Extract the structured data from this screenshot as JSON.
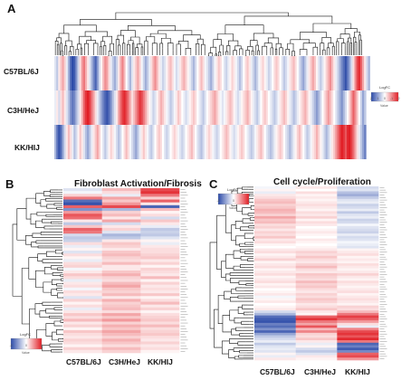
{
  "chart_data": [
    {
      "panel": "A",
      "type": "heatmap",
      "title": "",
      "rows": [
        "C57BL/6J",
        "C3H/HeJ",
        "KK/HIJ"
      ],
      "n_columns": 160,
      "legend": {
        "title": "LogFC",
        "ticks": [
          "2",
          "1",
          "0",
          "-1",
          "-2"
        ],
        "sub": "Value"
      },
      "profile": {
        "C57BL/6J": [
          -0.3,
          -0.6,
          0.2,
          0.5,
          0.8,
          0.4,
          -0.2,
          -0.9,
          -1.6,
          -2,
          -1.8,
          -1.2,
          -0.5,
          0.3,
          0.9,
          1.2,
          0.7,
          0.2,
          -0.3,
          -0.8,
          -1.3,
          -1.7,
          -1.1,
          -0.4,
          0.1,
          0.6,
          1,
          0.8,
          0.3,
          -0.2,
          -0.6,
          -0.9,
          -0.5,
          0.2,
          0.7,
          1.1,
          0.6,
          0,
          -0.4,
          -0.8,
          -0.3,
          0.2,
          0.5,
          0.8,
          0.4,
          -0.1,
          -0.5,
          -0.9,
          -0.6,
          -0.2,
          0.3,
          0.7,
          1,
          0.6,
          0.2,
          -0.2,
          -0.5,
          -0.3,
          0.1,
          0.4,
          0.6,
          0.3,
          -0.1,
          -0.4,
          -0.2,
          0.2,
          0.5,
          0.7,
          0.4,
          0.1,
          -0.2,
          -0.5,
          -0.8,
          -0.4,
          0,
          0.3,
          0.6,
          0.3,
          -0.1,
          -0.3,
          -0.6,
          -0.9,
          -0.5,
          -0.1,
          0.2,
          0.5,
          0.3,
          0,
          -0.3,
          -0.5,
          -0.2,
          0.1,
          0.4,
          0.2,
          -0.1,
          -0.4,
          -0.7,
          -0.4,
          0,
          0.3,
          0.5,
          0.2,
          -0.2,
          -0.5,
          -0.8,
          -0.5,
          -0.1,
          0.2,
          0.4,
          0.1,
          -0.2,
          -0.5,
          -0.3,
          0,
          0.3,
          0.5,
          0.3,
          0,
          -0.3,
          -0.6,
          -0.4,
          -0.1,
          0.2,
          0.4,
          0.6,
          0.3,
          0,
          -0.4,
          -0.7,
          -1,
          -0.6,
          -0.2,
          0.2,
          0.5,
          0.8,
          0.5,
          0.1,
          -0.3,
          -0.6,
          -0.3,
          0.1,
          0.4,
          0.7,
          1,
          0.6,
          0.2,
          -0.2,
          -0.5,
          -0.9,
          -1.3,
          -1.6,
          -1.9,
          -1.5,
          -1,
          -0.4,
          0.3,
          1,
          1.6,
          1.9,
          1.4,
          0.8,
          0.2,
          -0.4,
          -0.8
        ],
        "C3H/HeJ": [
          -0.2,
          0.2,
          -0.4,
          0.3,
          0.6,
          0.2,
          -0.3,
          -0.7,
          -1.2,
          -1.5,
          -1.3,
          -0.8,
          -0.4,
          0.2,
          0.7,
          1.4,
          1.8,
          2,
          1.7,
          1.2,
          0.8,
          0.3,
          -0.2,
          -0.6,
          -1,
          -1.4,
          -1.7,
          -1.9,
          -1.6,
          -1.2,
          -0.7,
          -0.3,
          0.2,
          0.8,
          1.3,
          1.7,
          1.9,
          1.6,
          1.2,
          0.7,
          0.3,
          0.6,
          1,
          1.4,
          1.8,
          1.6,
          1.2,
          0.8,
          0.4,
          0.1,
          -0.2,
          -0.5,
          -0.3,
          0.1,
          0.4,
          0.7,
          0.5,
          0.2,
          -0.1,
          -0.3,
          -0.6,
          -0.4,
          -0.1,
          0.2,
          0.5,
          0.3,
          0,
          -0.2,
          -0.4,
          -0.2,
          0.1,
          0.3,
          0.5,
          0.3,
          0,
          -0.2,
          -0.4,
          -0.6,
          -0.3,
          0,
          0.2,
          0.4,
          0.6,
          0.8,
          0.5,
          0.2,
          -0.1,
          -0.3,
          -0.1,
          0.2,
          0.4,
          0.6,
          0.4,
          0.1,
          -0.2,
          -0.4,
          -0.2,
          0.1,
          0.3,
          0.5,
          0.7,
          0.4,
          0.1,
          -0.2,
          -0.4,
          -0.6,
          -0.3,
          0,
          0.3,
          0.5,
          0.3,
          0,
          -0.2,
          -0.4,
          -0.6,
          -0.4,
          -0.1,
          0.2,
          0.4,
          0.6,
          0.4,
          0.1,
          -0.2,
          -0.4,
          -0.7,
          -0.5,
          -0.2,
          0.1,
          0.3,
          0.5,
          0.7,
          0.4,
          0.1,
          -0.2,
          -0.5,
          -0.8,
          -1.1,
          -0.8,
          -0.4,
          0,
          0.3,
          0.6,
          0.9,
          0.6,
          0.3,
          0,
          -0.3,
          -0.6,
          -0.9,
          -1.2,
          -0.8,
          -0.4,
          0,
          0.4,
          0.9,
          1.4,
          1,
          0.5,
          0,
          -0.5,
          -1,
          -0.6
        ],
        "KK/HIJ": [
          -0.8,
          -1.5,
          -1.9,
          -1.6,
          -1,
          -0.4,
          0.2,
          0.6,
          0.3,
          -0.2,
          -0.7,
          -0.4,
          0.1,
          0.5,
          0.2,
          -0.3,
          -0.7,
          -1,
          -0.6,
          -0.2,
          0.2,
          0.5,
          0.8,
          0.4,
          0,
          -0.3,
          -0.6,
          -0.3,
          0.1,
          0.4,
          0.2,
          -0.1,
          -0.4,
          -0.7,
          -0.4,
          0,
          0.3,
          0.6,
          0.3,
          -0.1,
          -0.4,
          -0.7,
          -1,
          -0.6,
          -0.2,
          0.2,
          0.5,
          0.2,
          -0.1,
          -0.4,
          -0.6,
          -0.3,
          0,
          0.3,
          0.5,
          0.3,
          0,
          -0.3,
          -0.5,
          -0.3,
          0,
          0.2,
          0.4,
          0.2,
          -0.1,
          -0.3,
          -0.5,
          -0.3,
          0,
          0.2,
          0.4,
          0.6,
          0.3,
          0,
          -0.3,
          -0.5,
          -0.7,
          -0.4,
          -0.1,
          0.2,
          0.4,
          0.2,
          -0.1,
          -0.3,
          -0.5,
          -0.3,
          0,
          0.2,
          0.4,
          0.6,
          0.4,
          0.1,
          -0.2,
          -0.4,
          -0.2,
          0.1,
          0.3,
          0.5,
          0.3,
          0,
          -0.2,
          -0.4,
          -0.6,
          -0.4,
          -0.1,
          0.2,
          0.4,
          0.6,
          0.3,
          0,
          -0.3,
          -0.5,
          -0.7,
          -0.5,
          -0.2,
          0.1,
          0.3,
          0.5,
          0.3,
          0,
          -0.3,
          -0.5,
          -0.8,
          -0.5,
          -0.2,
          0.1,
          0.4,
          0.6,
          0.3,
          0,
          -0.3,
          -0.6,
          -0.4,
          -0.1,
          0.2,
          0.4,
          0.7,
          0.4,
          0.1,
          -0.2,
          -0.5,
          -0.8,
          -0.5,
          -0.2,
          0.2,
          0.5,
          0.9,
          1.3,
          1.7,
          2,
          1.8,
          1.5,
          1.9,
          2,
          1.7,
          1.3,
          0.8,
          0.3,
          -0.2,
          -0.6,
          -1,
          -1.4
        ]
      }
    },
    {
      "panel": "B",
      "type": "heatmap",
      "title": "Fibroblast Activation/Fibrosis",
      "columns": [
        "C57BL/6J",
        "C3H/HeJ",
        "KK/HIJ"
      ],
      "n_rows": 58,
      "legend": {
        "title": "LogFC",
        "ticks": [
          "-2",
          "0",
          "2"
        ],
        "sub": "Value"
      },
      "rows": [
        [
          -0.3,
          0.6,
          1.6
        ],
        [
          -0.1,
          0.3,
          1.8
        ],
        [
          0.4,
          -0.2,
          1.2
        ],
        [
          1.2,
          0.8,
          0.4
        ],
        [
          -1.6,
          0.5,
          1.4
        ],
        [
          -1.9,
          0.9,
          0.2
        ],
        [
          1.4,
          1.6,
          -1.7
        ],
        [
          -1.2,
          -0.8,
          0.6
        ],
        [
          0.9,
          0.4,
          0.1
        ],
        [
          1.5,
          0.6,
          0.3
        ],
        [
          1.3,
          0.2,
          -0.4
        ],
        [
          0.2,
          0.8,
          0.5
        ],
        [
          -0.6,
          -0.4,
          0.2
        ],
        [
          0.5,
          0.2,
          -0.2
        ],
        [
          1.4,
          0.4,
          -0.6
        ],
        [
          1.2,
          -0.3,
          -0.5
        ],
        [
          -0.4,
          -0.8,
          -0.6
        ],
        [
          -0.6,
          -0.6,
          -0.3
        ],
        [
          -0.5,
          0.2,
          0.1
        ],
        [
          0.3,
          0.5,
          -0.2
        ],
        [
          -0.2,
          0.4,
          0.2
        ],
        [
          0.1,
          0.2,
          0.3
        ],
        [
          -0.3,
          0.5,
          0.3
        ],
        [
          0.3,
          0.6,
          0.4
        ],
        [
          0.1,
          0.4,
          0.5
        ],
        [
          -0.2,
          0.3,
          0.2
        ],
        [
          0.3,
          0.6,
          0.4
        ],
        [
          0.4,
          0.2,
          0.1
        ],
        [
          -0.1,
          0.2,
          0.4
        ],
        [
          0.2,
          0.5,
          0.3
        ],
        [
          0.5,
          0.7,
          0.2
        ],
        [
          0.3,
          0.4,
          0.6
        ],
        [
          -0.2,
          0.3,
          0.1
        ],
        [
          0.2,
          0.6,
          0.4
        ],
        [
          0.3,
          0.8,
          0.2
        ],
        [
          -0.1,
          0.5,
          0.3
        ],
        [
          0.3,
          0.4,
          0.2
        ],
        [
          0.2,
          0.6,
          0.5
        ],
        [
          -0.3,
          0.2,
          0.1
        ],
        [
          0.4,
          0.7,
          0.3
        ],
        [
          0.1,
          0.4,
          0.6
        ],
        [
          0.3,
          0.5,
          0.2
        ],
        [
          -0.2,
          0.6,
          0.4
        ],
        [
          0.2,
          0.3,
          0.1
        ],
        [
          0.5,
          0.8,
          0.3
        ],
        [
          0.3,
          0.5,
          0.4
        ],
        [
          0.6,
          0.9,
          0.5
        ],
        [
          0.2,
          0.4,
          0.3
        ],
        [
          0.4,
          0.7,
          0.6
        ],
        [
          0.1,
          0.5,
          0.3
        ],
        [
          0.5,
          0.8,
          0.4
        ],
        [
          0.3,
          0.6,
          0.5
        ],
        [
          0.2,
          0.4,
          0.3
        ],
        [
          0.4,
          0.7,
          0.2
        ],
        [
          0.3,
          0.5,
          0.4
        ],
        [
          0.1,
          0.3,
          0.2
        ],
        [
          0.4,
          0.6,
          0.3
        ],
        [
          0.2,
          0.4,
          0.1
        ]
      ]
    },
    {
      "panel": "C",
      "type": "heatmap",
      "title": "Cell cycle/Proliferation",
      "columns": [
        "C57BL/6J",
        "C3H/HeJ",
        "KK/HIJ"
      ],
      "n_rows": 70,
      "legend": {
        "title": "LogFC",
        "ticks": [
          "-2",
          "0",
          "2"
        ],
        "sub": "Value"
      },
      "rows": [
        [
          -0.1,
          0.2,
          -0.4
        ],
        [
          0.1,
          0,
          -0.3
        ],
        [
          -0.2,
          0.3,
          -0.7
        ],
        [
          0.2,
          0.1,
          -0.9
        ],
        [
          0.3,
          0.2,
          -0.6
        ],
        [
          0.5,
          0.1,
          -0.3
        ],
        [
          0.6,
          0.2,
          -0.2
        ],
        [
          0.4,
          0.3,
          -0.5
        ],
        [
          0.5,
          0.2,
          -0.4
        ],
        [
          0.7,
          0.1,
          -0.2
        ],
        [
          0.6,
          0.3,
          -0.6
        ],
        [
          0.4,
          0.2,
          -0.3
        ],
        [
          0.8,
          0.4,
          -0.2
        ],
        [
          0.5,
          0.1,
          -0.5
        ],
        [
          0.6,
          0.3,
          -0.4
        ],
        [
          0.3,
          0.2,
          -0.1
        ],
        [
          0.4,
          0,
          -0.3
        ],
        [
          0.2,
          0.1,
          -0.4
        ],
        [
          0.4,
          0.2,
          -0.5
        ],
        [
          0.3,
          0.1,
          -0.2
        ],
        [
          0.5,
          0,
          -0.4
        ],
        [
          0.2,
          0.2,
          -0.3
        ],
        [
          0.3,
          0.1,
          -0.1
        ],
        [
          0.1,
          0,
          -0.2
        ],
        [
          0,
          0.1,
          -0.3
        ],
        [
          0.2,
          0.2,
          0.1
        ],
        [
          0.3,
          0.4,
          0.2
        ],
        [
          0.1,
          0.3,
          0.3
        ],
        [
          0.2,
          0.5,
          0.1
        ],
        [
          0.4,
          0.3,
          0.2
        ],
        [
          0.1,
          0.2,
          0.1
        ],
        [
          0.2,
          0.4,
          0.3
        ],
        [
          0.3,
          0.6,
          0.2
        ],
        [
          0.1,
          0.3,
          0.1
        ],
        [
          0.2,
          0.2,
          0.2
        ],
        [
          0.3,
          0.5,
          0.4
        ],
        [
          0.1,
          0.4,
          0.2
        ],
        [
          0.2,
          0.3,
          0.1
        ],
        [
          0.3,
          0.6,
          0.3
        ],
        [
          0.1,
          0.4,
          0.2
        ],
        [
          0.2,
          0.5,
          0.1
        ],
        [
          0,
          0.3,
          0.2
        ],
        [
          0.1,
          0.2,
          0.3
        ],
        [
          0.2,
          0.4,
          0.1
        ],
        [
          -0.1,
          0.3,
          0.2
        ],
        [
          0.1,
          0.5,
          0.3
        ],
        [
          0.2,
          0.4,
          0.2
        ],
        [
          0,
          0.2,
          0.1
        ],
        [
          0.1,
          0.3,
          0.4
        ],
        [
          0.2,
          0.5,
          0.3
        ],
        [
          -0.4,
          0.2,
          0.6
        ],
        [
          -0.8,
          0.1,
          1.2
        ],
        [
          -1.6,
          1.4,
          1.7
        ],
        [
          -1.8,
          1.8,
          1.4
        ],
        [
          -1.9,
          1.2,
          0.9
        ],
        [
          -1.4,
          0.8,
          0.3
        ],
        [
          -1.6,
          1.5,
          -0.2
        ],
        [
          -1.2,
          0.6,
          1.1
        ],
        [
          -1.7,
          1.1,
          1.6
        ],
        [
          -1,
          0.4,
          1.8
        ],
        [
          -0.6,
          0.3,
          1.5
        ],
        [
          -0.4,
          0.5,
          1.9
        ],
        [
          -0.2,
          0.2,
          1.2
        ],
        [
          -0.6,
          -0.2,
          -1.7
        ],
        [
          -0.3,
          0.1,
          -1.4
        ],
        [
          -0.2,
          -0.4,
          -1.8
        ],
        [
          -0.3,
          -0.6,
          -1.3
        ],
        [
          0.1,
          -0.3,
          1.4
        ],
        [
          -0.2,
          0.2,
          1.6
        ],
        [
          0.2,
          0.1,
          0.9
        ]
      ]
    }
  ],
  "colors": {
    "low": "#2b4aa8",
    "mid": "#ffffff",
    "high": "#e11d24"
  },
  "labels": {
    "panel_a": "A",
    "panel_b": "B",
    "panel_c": "C"
  }
}
